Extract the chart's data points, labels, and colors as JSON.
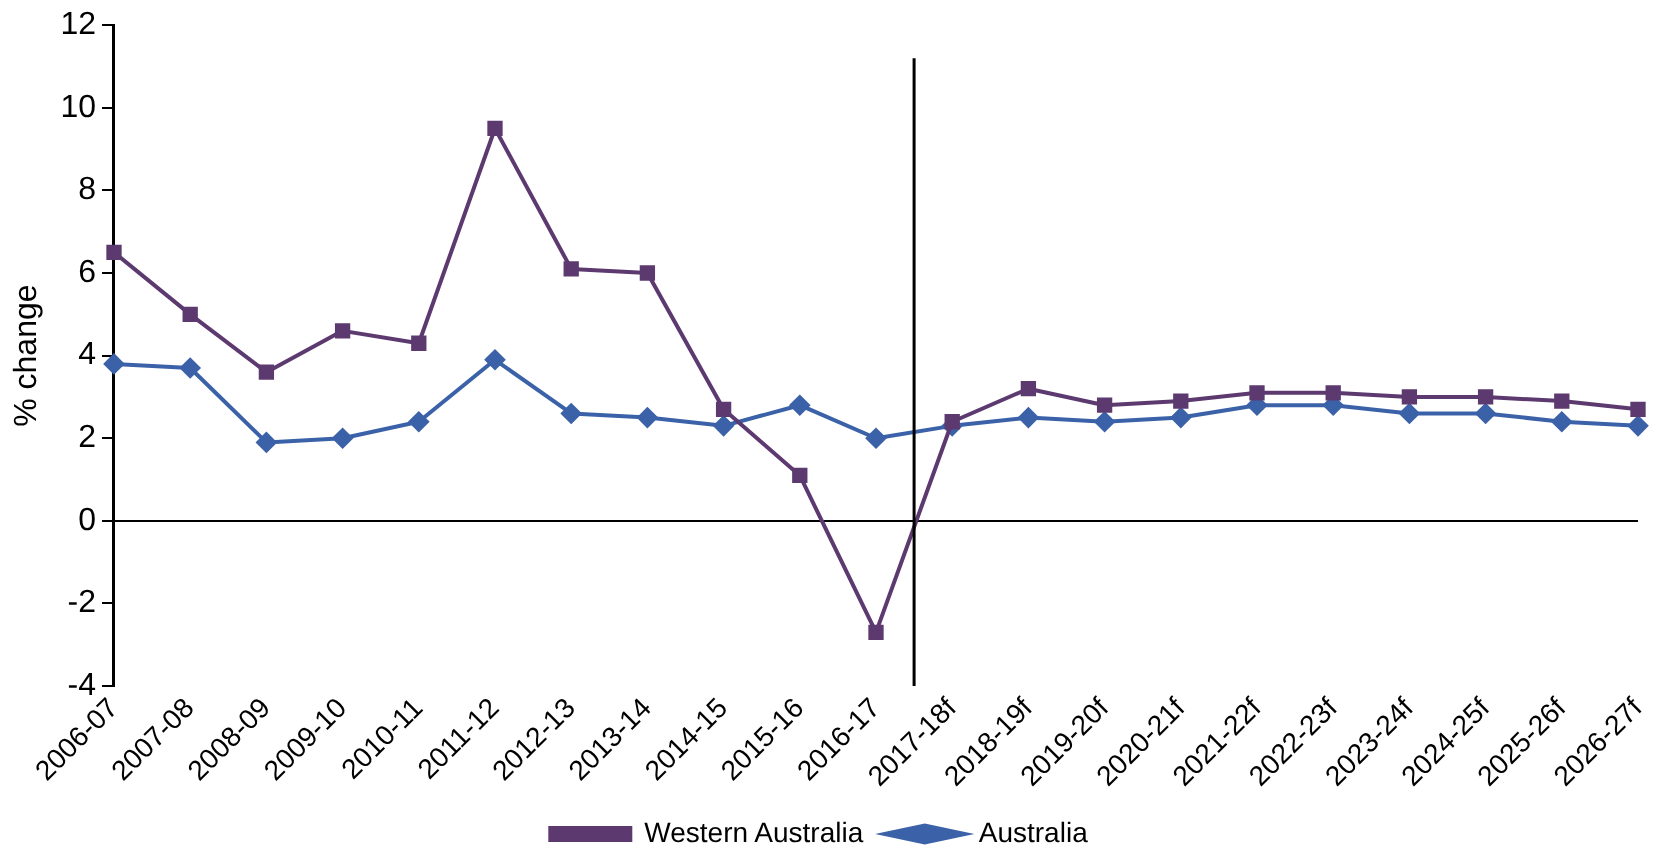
{
  "chart_data": {
    "type": "line",
    "ylabel": "% change",
    "categories": [
      "2006-07",
      "2007-08",
      "2008-09",
      "2009-10",
      "2010-11",
      "2011-12",
      "2012-13",
      "2013-14",
      "2014-15",
      "2015-16",
      "2016-17",
      "2017-18f",
      "2018-19f",
      "2019-20f",
      "2020-21f",
      "2021-22f",
      "2022-23f",
      "2023-24f",
      "2024-25f",
      "2025-26f",
      "2026-27f"
    ],
    "series": [
      {
        "name": "Australia",
        "color": "#3b62a8",
        "marker": "diamond",
        "values": [
          3.8,
          3.7,
          1.9,
          2.0,
          2.4,
          3.9,
          2.6,
          2.5,
          2.3,
          2.8,
          2.0,
          2.3,
          2.5,
          2.4,
          2.5,
          2.8,
          2.8,
          2.6,
          2.6,
          2.4,
          2.3
        ]
      },
      {
        "name": "Western Australia",
        "color": "#5c3a70",
        "marker": "square",
        "values": [
          6.5,
          5.0,
          3.6,
          4.6,
          4.3,
          9.5,
          6.1,
          6.0,
          2.7,
          1.1,
          -2.7,
          2.4,
          3.2,
          2.8,
          2.9,
          3.1,
          3.1,
          3.0,
          3.0,
          2.9,
          2.7
        ]
      }
    ],
    "ylim": [
      -4,
      12
    ],
    "yticks": [
      -4,
      -2,
      0,
      2,
      4,
      6,
      8,
      10,
      12
    ],
    "ref_lines": [
      {
        "axis": "x",
        "value": "2017-18f",
        "color": "#000000"
      }
    ],
    "grid": false,
    "legend": "bottom"
  }
}
